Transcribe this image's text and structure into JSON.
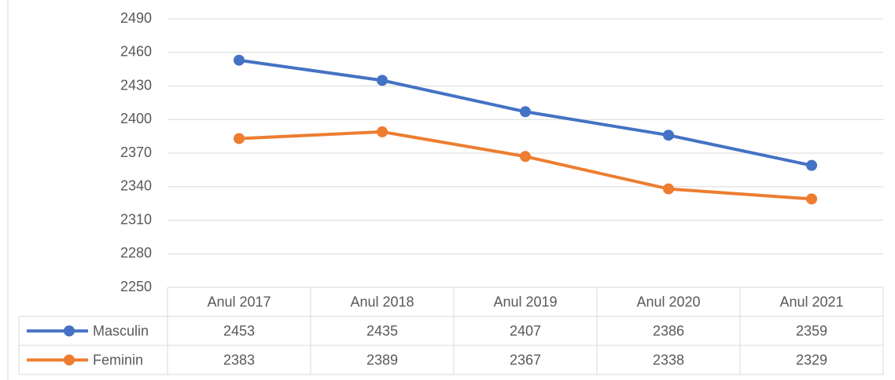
{
  "chart_data": {
    "type": "line",
    "categories": [
      "Anul 2017",
      "Anul 2018",
      "Anul 2019",
      "Anul 2020",
      "Anul 2021"
    ],
    "series": [
      {
        "name": "Masculin",
        "color": "#4472c4",
        "values": [
          2453,
          2435,
          2407,
          2386,
          2359
        ]
      },
      {
        "name": "Feminin",
        "color": "#ed7d31",
        "values": [
          2383,
          2389,
          2367,
          2338,
          2329
        ]
      }
    ],
    "ylim": [
      2250,
      2490
    ],
    "yticks": [
      2250,
      2280,
      2310,
      2340,
      2370,
      2400,
      2430,
      2460,
      2490
    ],
    "grid": true,
    "data_table": true
  }
}
